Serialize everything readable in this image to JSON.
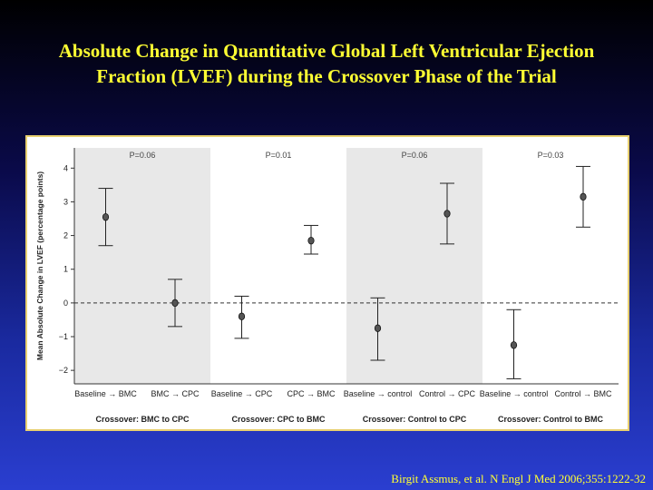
{
  "title_line1": "Absolute Change in Quantitative Global Left Ventricular Ejection",
  "title_line2": "Fraction (LVEF) during the Crossover Phase of the Trial",
  "citation": "Birgit Assmus, et al. N Engl J Med 2006;355:1222-32",
  "chart_data": {
    "type": "scatter",
    "ylabel": "Mean Absolute Change in LVEF (percentage points)",
    "ylim": [
      -2.4,
      4.6
    ],
    "yticks": [
      4,
      3,
      2,
      1,
      0,
      -1,
      -2
    ],
    "ytick_labels": [
      "4",
      "3",
      "2",
      "1",
      "0",
      "−1",
      "−2"
    ],
    "reference_line": 0,
    "groups": [
      {
        "name": "Crossover: BMC to CPC",
        "p_value": "P=0.06",
        "shaded": true,
        "points": [
          {
            "label": "Baseline → BMC",
            "mean": 2.55,
            "low": 1.7,
            "high": 3.4
          },
          {
            "label": "BMC → CPC",
            "mean": 0.0,
            "low": -0.7,
            "high": 0.7
          }
        ]
      },
      {
        "name": "Crossover: CPC to BMC",
        "p_value": "P=0.01",
        "shaded": false,
        "points": [
          {
            "label": "Baseline → CPC",
            "mean": -0.4,
            "low": -1.05,
            "high": 0.2
          },
          {
            "label": "CPC → BMC",
            "mean": 1.85,
            "low": 1.45,
            "high": 2.3
          }
        ]
      },
      {
        "name": "Crossover: Control to CPC",
        "p_value": "P=0.06",
        "shaded": true,
        "points": [
          {
            "label": "Baseline → control",
            "mean": -0.75,
            "low": -1.7,
            "high": 0.15
          },
          {
            "label": "Control → CPC",
            "mean": 2.65,
            "low": 1.75,
            "high": 3.55
          }
        ]
      },
      {
        "name": "Crossover: Control to BMC",
        "p_value": "P=0.03",
        "shaded": false,
        "points": [
          {
            "label": "Baseline → control",
            "mean": -1.25,
            "low": -2.25,
            "high": -0.2
          },
          {
            "label": "Control → BMC",
            "mean": 3.15,
            "low": 2.25,
            "high": 4.05
          }
        ]
      }
    ],
    "colors": {
      "shade": "#e8e8e8",
      "marker": "#555555",
      "axis": "#333333"
    }
  }
}
